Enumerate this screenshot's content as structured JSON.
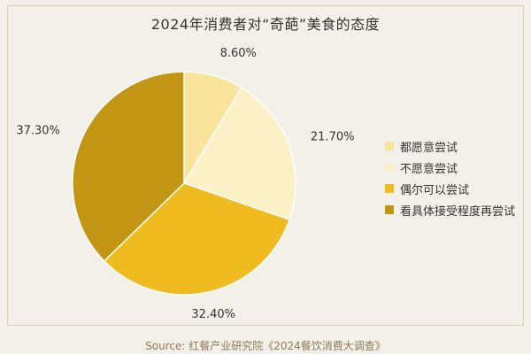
{
  "chart_data": {
    "type": "pie",
    "title": "2024年消费者对“奇葩”美食的态度",
    "categories": [
      "都愿意尝试",
      "不愿意尝试",
      "偶尔可以尝试",
      "看具体接受程度再尝试"
    ],
    "values": [
      8.6,
      21.7,
      32.4,
      37.3
    ],
    "value_labels": [
      "8.60%",
      "21.70%",
      "32.40%",
      "37.30%"
    ],
    "colors": [
      "#fae39a",
      "#fbf0c6",
      "#efbb1e",
      "#c29513"
    ],
    "legend_position": "right",
    "start_angle": "top",
    "direction": "clockwise"
  },
  "source": "Source: 红餐产业研究院《2024餐饮消费大调查》"
}
